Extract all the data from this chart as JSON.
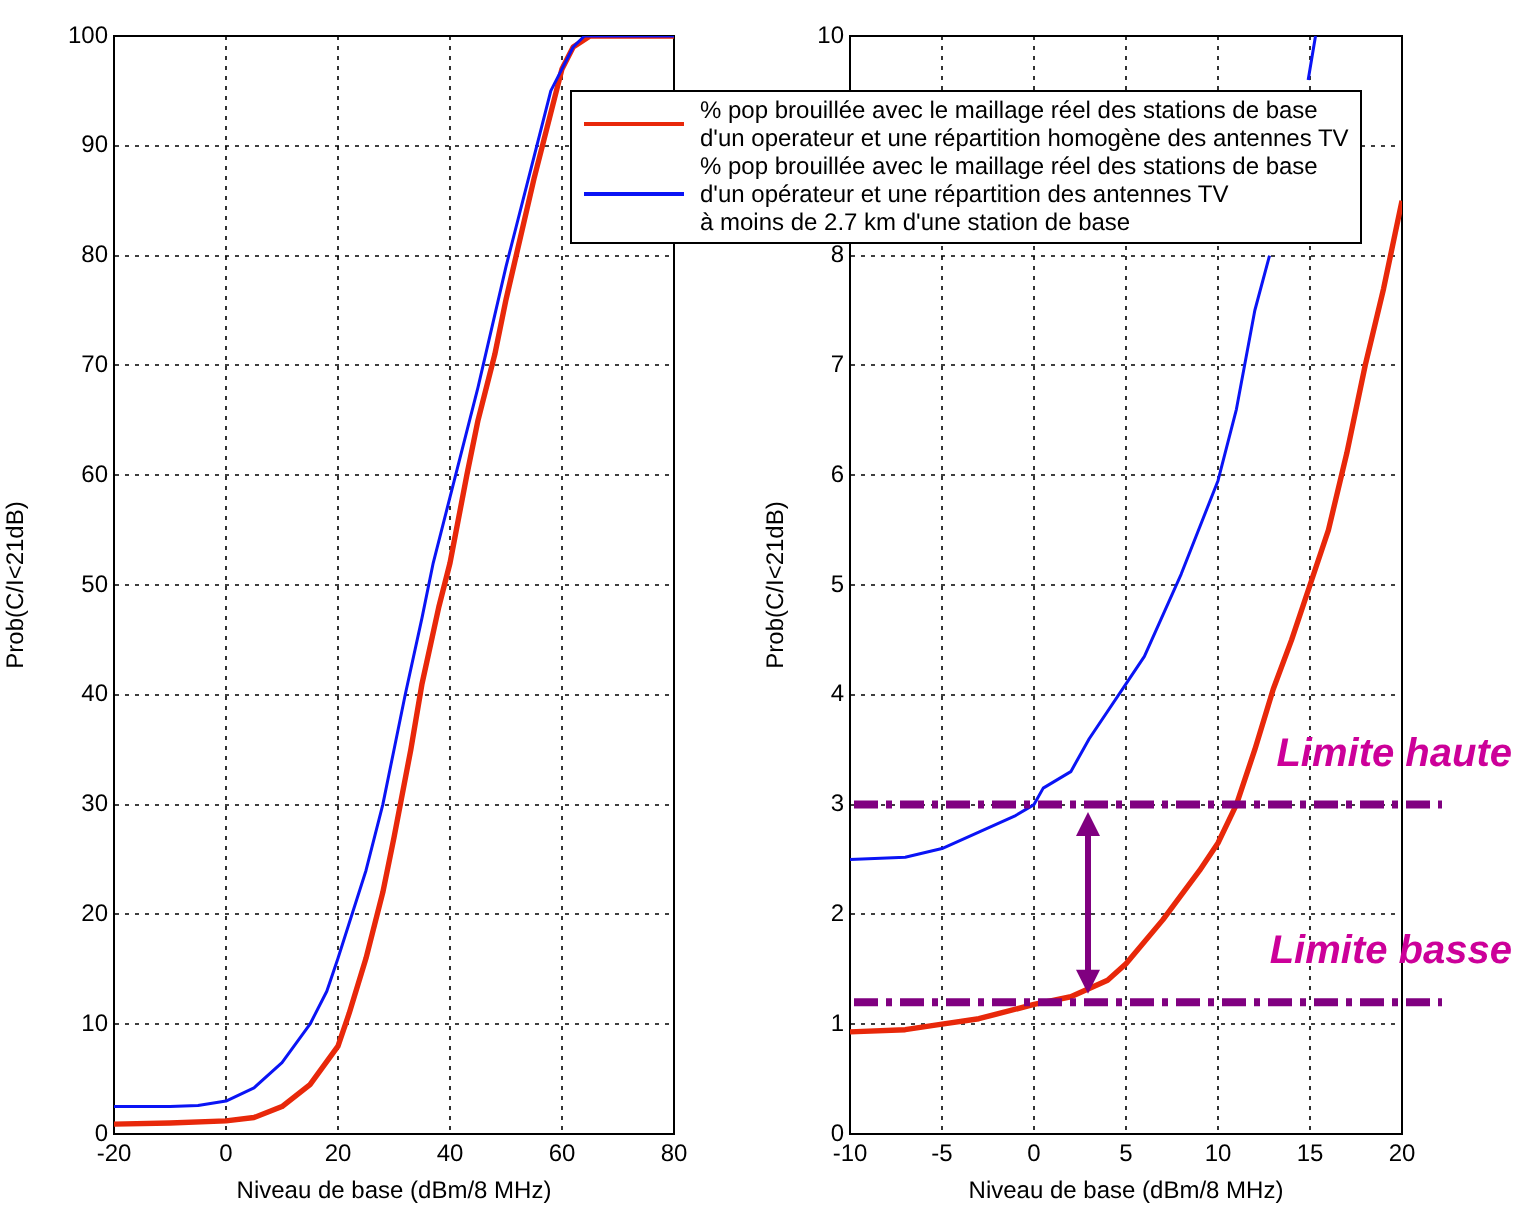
{
  "chart_data": [
    {
      "type": "line",
      "xlabel": "Niveau de base (dBm/8 MHz)",
      "ylabel": "Prob(C/I<21dB)",
      "xlim": [
        -20,
        80
      ],
      "xticks": [
        -20,
        0,
        20,
        40,
        60,
        80
      ],
      "ylim": [
        0,
        100
      ],
      "yticks": [
        0,
        10,
        20,
        30,
        40,
        50,
        60,
        70,
        80,
        90,
        100
      ],
      "grid": true,
      "legend": "top right",
      "marker": "none",
      "line_style": "solid",
      "series": [
        {
          "name": "% pop brouillée avec le maillage réel des stations de base\nd'un operateur et une répartition homogène des antennes TV",
          "color": "#e8280a",
          "x": [
            -20,
            -10,
            0,
            5,
            10,
            15,
            20,
            22,
            25,
            28,
            30,
            33,
            35,
            38,
            40,
            43,
            45,
            48,
            50,
            55,
            58,
            60,
            62,
            65,
            80
          ],
          "values": [
            0.9,
            1,
            1.2,
            1.5,
            2.5,
            4.5,
            8,
            11,
            16,
            22,
            27,
            35,
            41,
            48,
            52,
            60,
            65,
            71,
            76,
            87,
            93,
            97,
            99,
            100,
            100
          ]
        },
        {
          "name": "% pop brouillée avec le maillage réel des stations de base\nd'un opérateur et une répartition des antennes TV\nà moins de 2.7 km d'une station de base",
          "color": "#0a14f5",
          "x": [
            -20,
            -10,
            -5,
            0,
            5,
            10,
            15,
            18,
            20,
            25,
            28,
            30,
            32,
            35,
            37,
            40,
            45,
            50,
            55,
            58,
            60,
            62,
            64,
            80
          ],
          "values": [
            2.5,
            2.5,
            2.6,
            3,
            4.2,
            6.5,
            10,
            13,
            16,
            24,
            30,
            35,
            40,
            47,
            52,
            58,
            68,
            79,
            89,
            95,
            97,
            99,
            100,
            100
          ]
        }
      ]
    },
    {
      "type": "line",
      "xlabel": "Niveau de base (dBm/8 MHz)",
      "ylabel": "Prob(C/I<21dB)",
      "xlim": [
        -10,
        20
      ],
      "xticks": [
        -10,
        -5,
        0,
        5,
        10,
        15,
        20
      ],
      "ylim": [
        0,
        10
      ],
      "yticks": [
        0,
        1,
        2,
        3,
        4,
        5,
        6,
        7,
        8,
        {
          "value": 9,
          "label": null
        },
        10
      ],
      "grid": true,
      "marker": "none",
      "line_style": "solid",
      "series": [
        {
          "color": "#e8280a",
          "x": [
            -10,
            -7,
            -5,
            -3,
            0,
            2,
            4,
            5,
            7,
            9,
            10,
            11,
            12,
            13,
            14,
            15,
            16,
            17,
            18,
            19,
            20
          ],
          "values": [
            0.93,
            0.95,
            1,
            1.05,
            1.18,
            1.25,
            1.4,
            1.55,
            1.95,
            2.4,
            2.65,
            3,
            3.5,
            4.05,
            4.5,
            5,
            5.5,
            6.2,
            7,
            7.7,
            8.5
          ]
        },
        {
          "color": "#0a14f5",
          "x": [
            -10,
            -7,
            -5,
            -3,
            -1,
            0,
            0.5,
            2,
            3,
            5,
            6,
            8,
            10,
            11,
            12,
            12.8,
            13.5,
            14.9,
            15.3
          ],
          "values": [
            2.5,
            2.52,
            2.6,
            2.75,
            2.9,
            3,
            3.15,
            3.3,
            3.6,
            4.1,
            4.35,
            5.1,
            5.95,
            6.6,
            7.5,
            8,
            null,
            9.6,
            10
          ]
        }
      ],
      "ref_lines": [
        {
          "axis": "y",
          "value": 3,
          "label": "Limite haute",
          "color": "#800080",
          "line_style": "dashdot"
        },
        {
          "axis": "y",
          "value": 1.2,
          "label": "Limite basse",
          "color": "#800080",
          "line_style": "dashdot"
        }
      ]
    }
  ]
}
